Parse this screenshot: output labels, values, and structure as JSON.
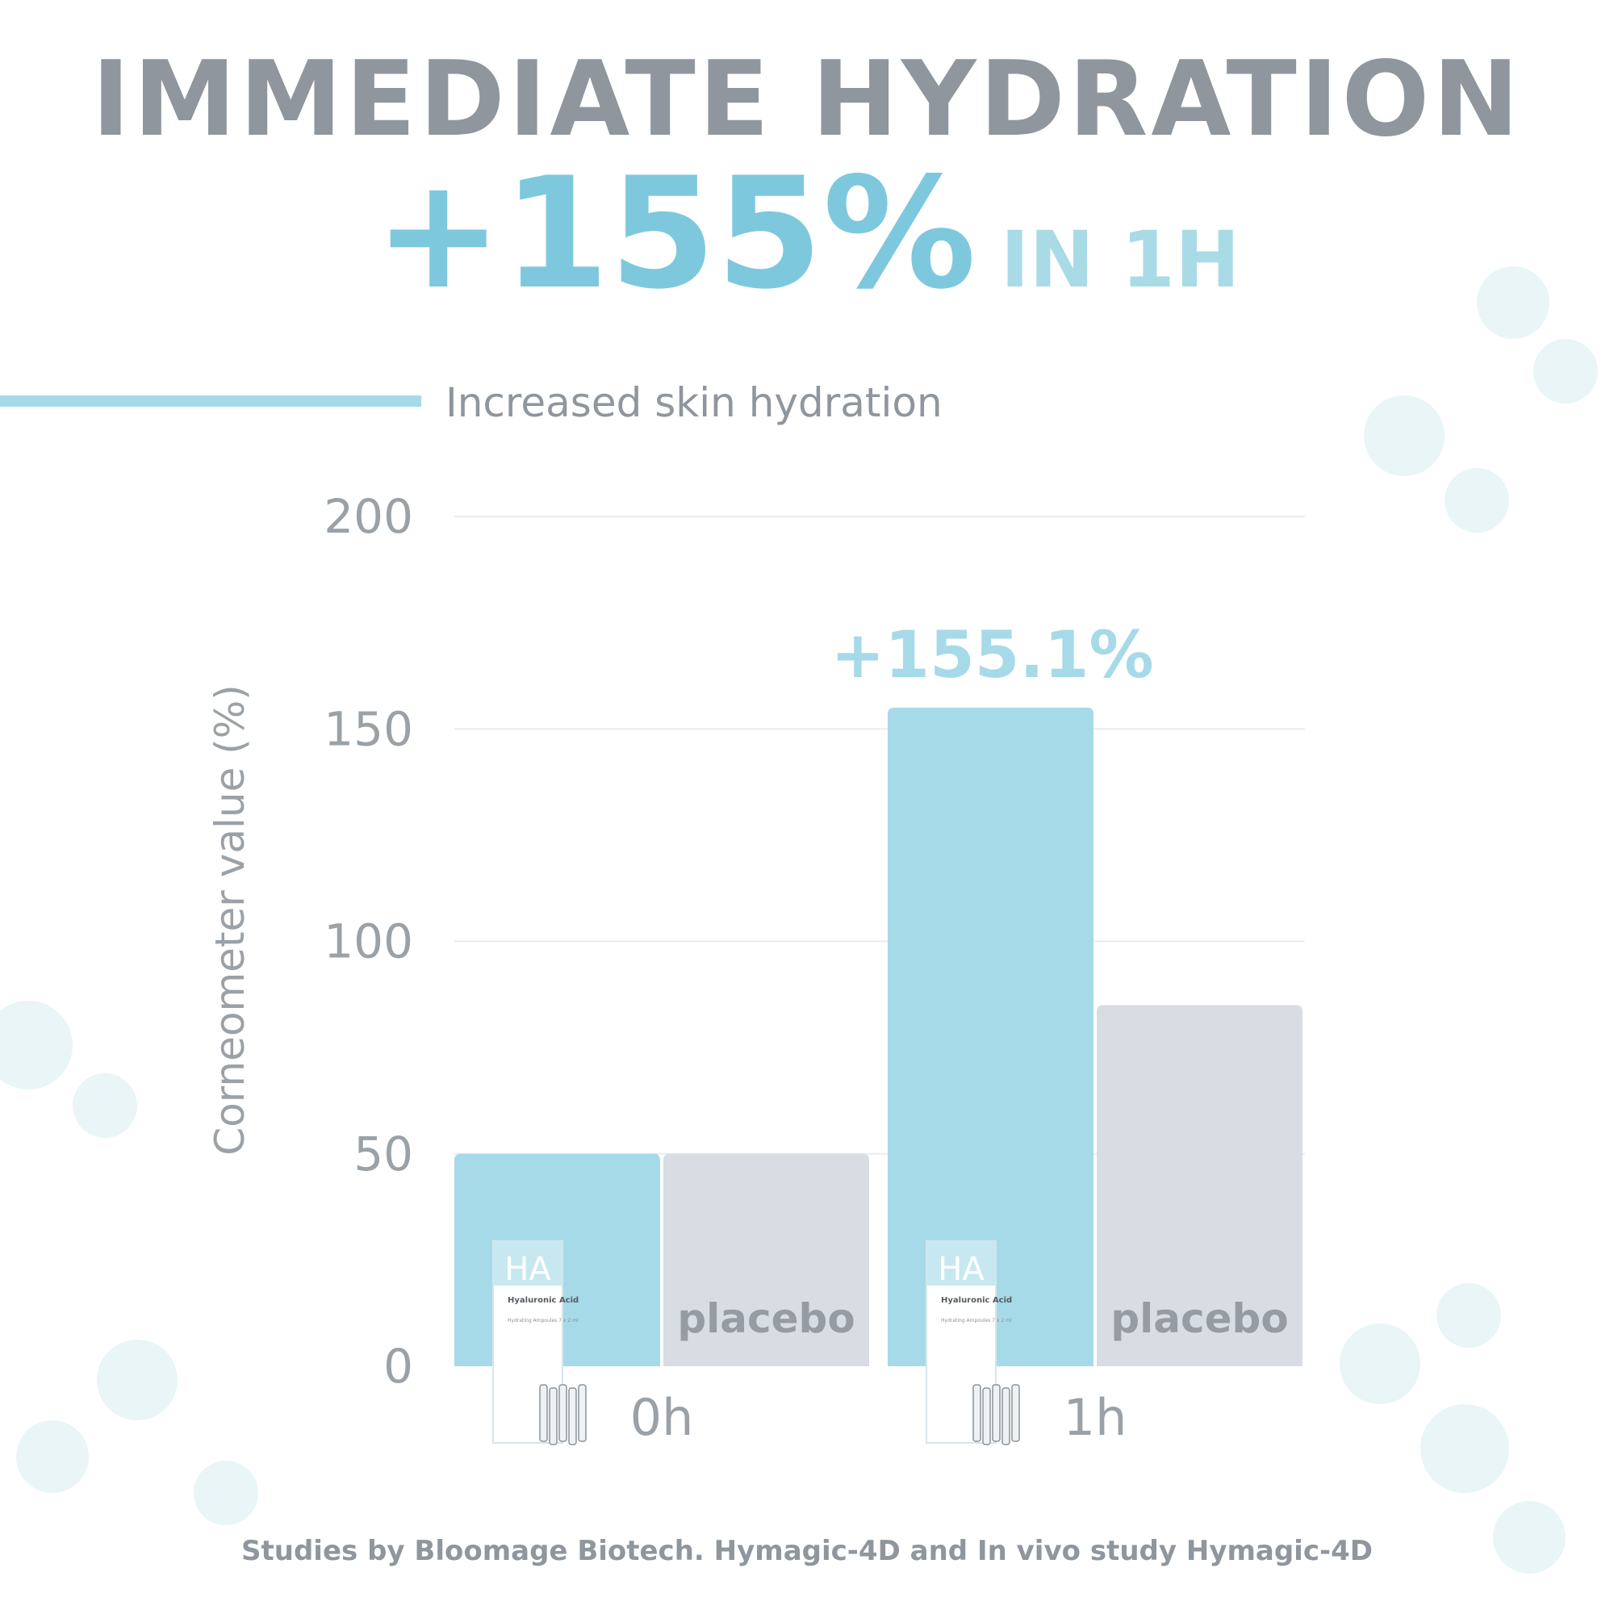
{
  "header": {
    "title": "IMMEDIATE HYDRATION",
    "stat_big": "+155%",
    "stat_small": "IN 1H"
  },
  "chart_data": {
    "type": "bar",
    "title": "Increased skin hydration",
    "ylabel": "Corneometer value (%)",
    "xlabel": "",
    "ylim": [
      0,
      200
    ],
    "yticks": [
      0,
      50,
      100,
      150,
      200
    ],
    "grid": true,
    "categories": [
      "0h",
      "1h"
    ],
    "series": [
      {
        "name": "HA Hyaluronic Acid",
        "values": [
          50,
          155
        ],
        "color": "#a6dae8"
      },
      {
        "name": "placebo",
        "values": [
          50,
          85
        ],
        "color": "#d8dde3"
      }
    ],
    "bar_labels": [
      "",
      "placebo",
      "",
      "placebo"
    ],
    "annotation": {
      "text": "+155.1%",
      "category": "1h"
    },
    "product": {
      "logo": "HA",
      "name": "Hyaluronic Acid",
      "desc": "Hydrating Ampoules 7 x 2 ml"
    }
  },
  "colors": {
    "accent": "#7ec8de",
    "bar_ha": "#a6dae8",
    "bar_placebo": "#d8dde3",
    "text_gray": "#8f969d"
  },
  "footer": {
    "source": "Studies by Bloomage Biotech. Hymagic-4D and In vivo study Hymagic-4D"
  }
}
